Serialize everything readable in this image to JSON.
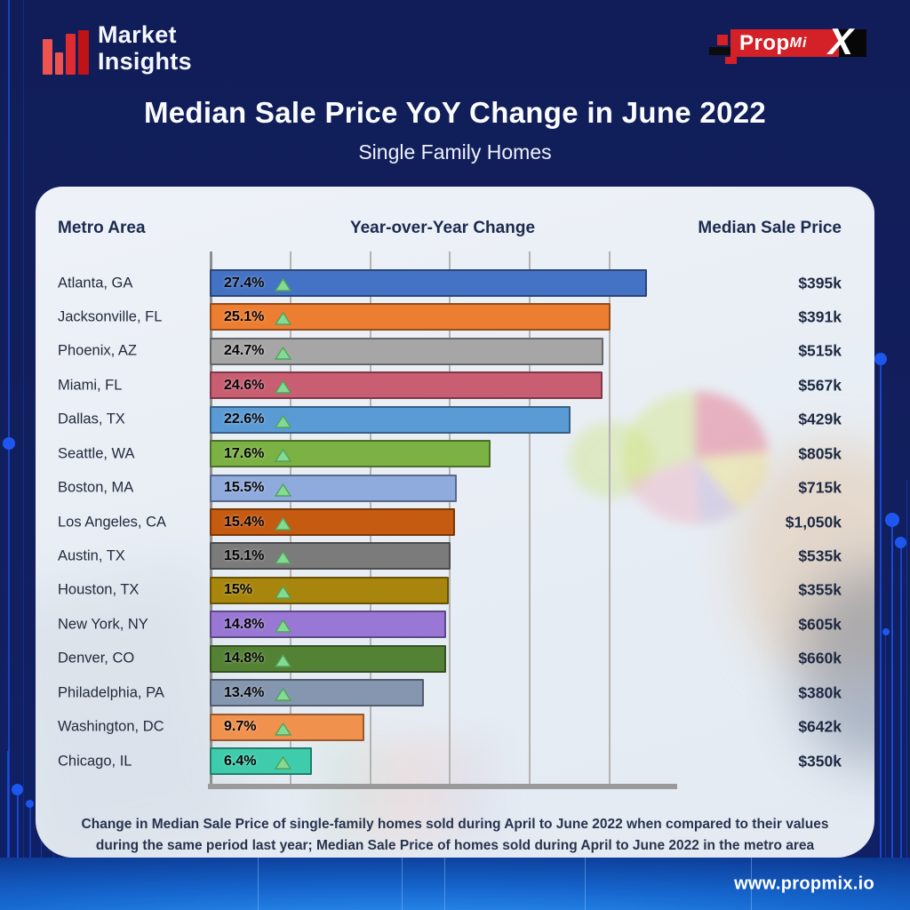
{
  "brand": {
    "line1": "Market",
    "line2": "Insights"
  },
  "partner_logo": {
    "prop": "Prop",
    "mi": "Mi",
    "x": "X"
  },
  "title": "Median Sale Price YoY Change in June 2022",
  "subtitle": "Single Family Homes",
  "table": {
    "col_metro": "Metro Area",
    "col_yoy": "Year-over-Year Change",
    "col_price": "Median Sale Price"
  },
  "chart_data": {
    "type": "bar",
    "orientation": "horizontal",
    "title": "Median Sale Price YoY Change in June 2022",
    "subtitle": "Single Family Homes",
    "xlabel": "Year-over-Year Change",
    "xlim": [
      0,
      30
    ],
    "gridlines_percent": [
      0,
      5,
      10,
      15,
      20,
      25
    ],
    "grid": true,
    "categories": [
      "Atlanta, GA",
      "Jacksonville, FL",
      "Phoenix, AZ",
      "Miami, FL",
      "Dallas, TX",
      "Seattle, WA",
      "Boston, MA",
      "Los Angeles, CA",
      "Austin, TX",
      "Houston, TX",
      "New York, NY",
      "Denver, CO",
      "Philadelphia, PA",
      "Washington, DC",
      "Chicago, IL"
    ],
    "series": [
      {
        "name": "Year-over-Year Change %",
        "values": [
          27.4,
          25.1,
          24.7,
          24.6,
          22.6,
          17.6,
          15.5,
          15.4,
          15.1,
          15,
          14.8,
          14.8,
          13.4,
          9.7,
          6.4
        ]
      }
    ],
    "value_labels": [
      "27.4%",
      "25.1%",
      "24.7%",
      "24.6%",
      "22.6%",
      "17.6%",
      "15.5%",
      "15.4%",
      "15.1%",
      "15%",
      "14.8%",
      "14.8%",
      "13.4%",
      "9.7%",
      "6.4%"
    ],
    "price_labels": [
      "$395k",
      "$391k",
      "$515k",
      "$567k",
      "$429k",
      "$805k",
      "$715k",
      "$1,050k",
      "$535k",
      "$355k",
      "$605k",
      "$660k",
      "$380k",
      "$642k",
      "$350k"
    ],
    "bar_colors": [
      "#4472C4",
      "#ED7D31",
      "#A6A6A6",
      "#C95D72",
      "#5B9BD5",
      "#7CB144",
      "#8FAADC",
      "#C55A11",
      "#7B7B7B",
      "#A8860D",
      "#9878D4",
      "#548235",
      "#8496B0",
      "#F0914E",
      "#3ECCAC"
    ],
    "marker_icon": "up-arrow-icon"
  },
  "footnote": "Change in Median Sale Price of single-family homes sold during April to June 2022 when compared to their values during the same period last year; Median Sale Price of homes sold during April to June 2022 in the metro area",
  "website": "www.propmix.io",
  "colors": {
    "background_navy": "#121F5E",
    "brand_red": "#D42027",
    "footer_blue": "#1565CD",
    "triangle_green_fill": "#86D993",
    "triangle_green_stroke": "#4FA35C",
    "grid_gray": "#B3B3B3"
  }
}
